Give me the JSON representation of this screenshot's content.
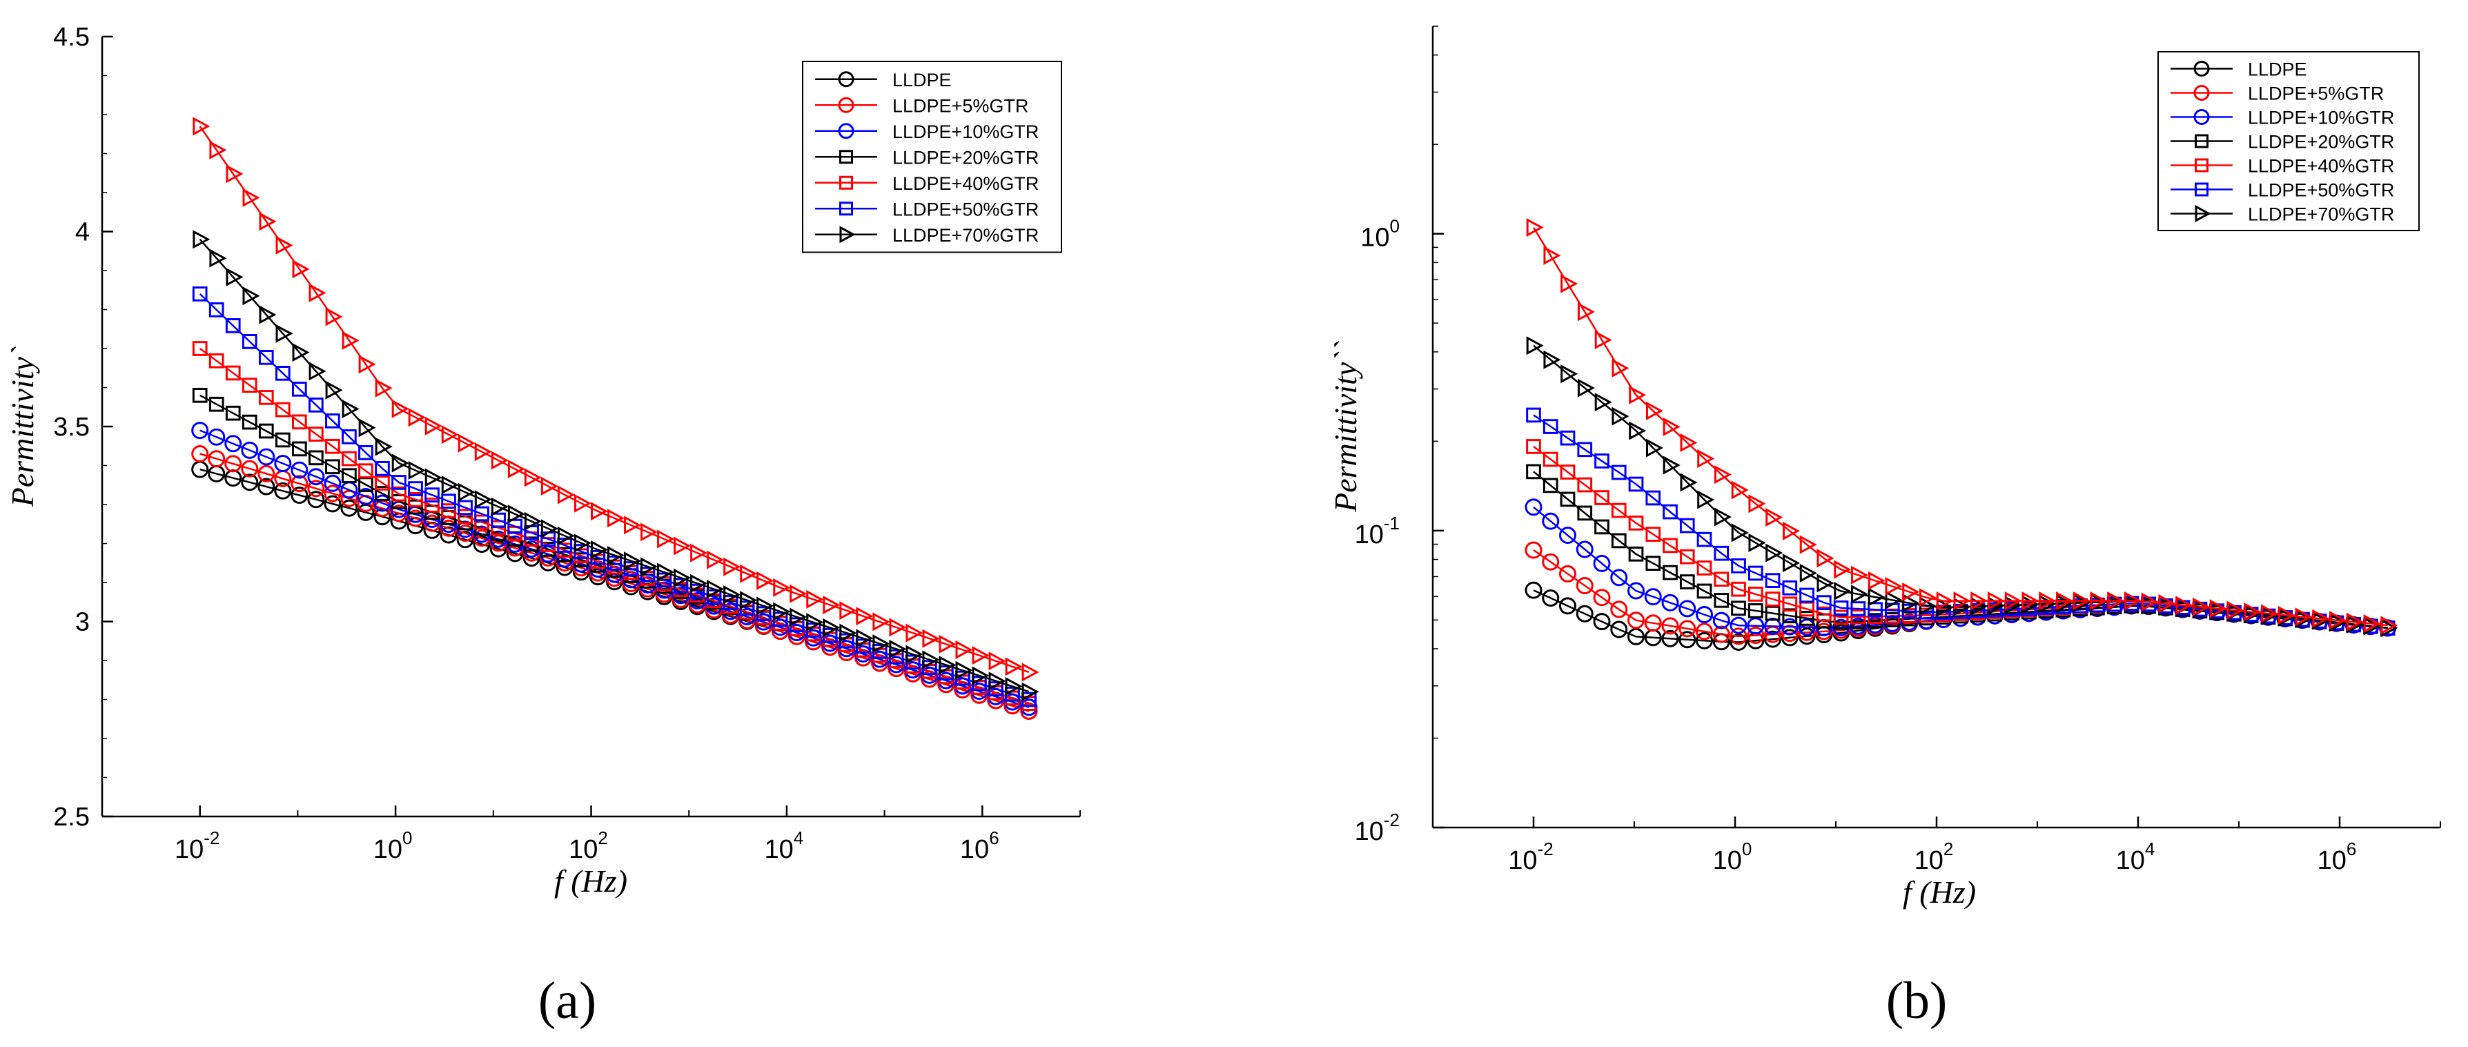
{
  "figures": [
    {
      "panel_label": "(a)",
      "xlabel": "f (Hz)",
      "ylabel": "Permittivity`",
      "legend_position": "top-right"
    },
    {
      "panel_label": "(b)",
      "xlabel": "f (Hz)",
      "ylabel": "Permittivity``",
      "legend_position": "top-right"
    }
  ],
  "chart_data": [
    {
      "type": "line",
      "title": "",
      "xlabel": "f (Hz)",
      "ylabel": "Permittivity`",
      "xscale": "log",
      "yscale": "linear",
      "xlim": [
        0.001,
        10000000
      ],
      "ylim": [
        2.5,
        4.5
      ],
      "xtick_exponents": [
        -2,
        0,
        2,
        4,
        6
      ],
      "yticks": [
        "2.5",
        "3",
        "3.5",
        "4",
        "4.5"
      ],
      "x_start": 0.01,
      "x_end": 3000000,
      "points_per_series": 51,
      "series": [
        {
          "name": "LLDPE",
          "color": "#000000",
          "marker": "circle",
          "knots": [
            [
              0.01,
              3.39
            ],
            [
              1,
              3.26
            ],
            [
              100,
              3.12
            ],
            [
              10000,
              2.97
            ],
            [
              3000000,
              2.77
            ]
          ]
        },
        {
          "name": "LLDPE+5%GTR",
          "color": "#ff0000",
          "marker": "circle",
          "knots": [
            [
              0.01,
              3.43
            ],
            [
              1,
              3.28
            ],
            [
              100,
              3.13
            ],
            [
              10000,
              2.97
            ],
            [
              3000000,
              2.77
            ]
          ]
        },
        {
          "name": "LLDPE+10%GTR",
          "color": "#0000ff",
          "marker": "circle",
          "knots": [
            [
              0.01,
              3.49
            ],
            [
              1,
              3.29
            ],
            [
              100,
              3.14
            ],
            [
              10000,
              2.98
            ],
            [
              3000000,
              2.78
            ]
          ]
        },
        {
          "name": "LLDPE+20%GTR",
          "color": "#000000",
          "marker": "square",
          "knots": [
            [
              0.01,
              3.58
            ],
            [
              1,
              3.31
            ],
            [
              100,
              3.15
            ],
            [
              10000,
              2.99
            ],
            [
              3000000,
              2.79
            ]
          ]
        },
        {
          "name": "LLDPE+40%GTR",
          "color": "#ff0000",
          "marker": "square",
          "knots": [
            [
              0.01,
              3.7
            ],
            [
              1,
              3.33
            ],
            [
              100,
              3.16
            ],
            [
              10000,
              2.99
            ],
            [
              3000000,
              2.79
            ]
          ]
        },
        {
          "name": "LLDPE+50%GTR",
          "color": "#0000ff",
          "marker": "square",
          "knots": [
            [
              0.01,
              3.84
            ],
            [
              1,
              3.36
            ],
            [
              100,
              3.17
            ],
            [
              10000,
              3.0
            ],
            [
              3000000,
              2.8
            ]
          ]
        },
        {
          "name": "LLDPE+70%GTR",
          "color": "#000000",
          "marker": "triangle-right",
          "knots": [
            [
              0.01,
              3.98
            ],
            [
              1,
              3.41
            ],
            [
              100,
              3.19
            ],
            [
              10000,
              3.02
            ],
            [
              3000000,
              2.82
            ]
          ]
        },
        {
          "name": "",
          "color": "#ff0000",
          "marker": "triangle-right",
          "knots": [
            [
              0.01,
              4.27
            ],
            [
              1,
              3.55
            ],
            [
              100,
              3.29
            ],
            [
              10000,
              3.08
            ],
            [
              3000000,
              2.87
            ]
          ]
        }
      ]
    },
    {
      "type": "line",
      "title": "",
      "xlabel": "f (Hz)",
      "ylabel": "Permittivity``",
      "xscale": "log",
      "yscale": "log",
      "xlim": [
        0.001,
        10000000
      ],
      "ylim": [
        0.01,
        5
      ],
      "xtick_exponents": [
        -2,
        0,
        2,
        4,
        6
      ],
      "ytick_exponents": [
        -2,
        -1,
        0
      ],
      "x_start": 0.01,
      "x_end": 3000000,
      "points_per_series": 51,
      "series": [
        {
          "name": "LLDPE",
          "color": "#000000",
          "marker": "circle",
          "knots": [
            [
              0.01,
              0.063
            ],
            [
              0.1,
              0.044
            ],
            [
              1,
              0.042
            ],
            [
              10,
              0.045
            ],
            [
              100,
              0.05
            ],
            [
              10000,
              0.056
            ],
            [
              3000000,
              0.047
            ]
          ]
        },
        {
          "name": "LLDPE+5%GTR",
          "color": "#ff0000",
          "marker": "circle",
          "knots": [
            [
              0.01,
              0.086
            ],
            [
              0.1,
              0.05
            ],
            [
              1,
              0.044
            ],
            [
              10,
              0.046
            ],
            [
              100,
              0.05
            ],
            [
              10000,
              0.056
            ],
            [
              3000000,
              0.047
            ]
          ]
        },
        {
          "name": "LLDPE+10%GTR",
          "color": "#0000ff",
          "marker": "circle",
          "knots": [
            [
              0.01,
              0.12
            ],
            [
              0.1,
              0.063
            ],
            [
              1,
              0.048
            ],
            [
              10,
              0.047
            ],
            [
              100,
              0.05
            ],
            [
              10000,
              0.056
            ],
            [
              3000000,
              0.047
            ]
          ]
        },
        {
          "name": "LLDPE+20%GTR",
          "color": "#000000",
          "marker": "square",
          "knots": [
            [
              0.01,
              0.158
            ],
            [
              0.1,
              0.084
            ],
            [
              1,
              0.055
            ],
            [
              10,
              0.049
            ],
            [
              100,
              0.051
            ],
            [
              10000,
              0.056
            ],
            [
              3000000,
              0.047
            ]
          ]
        },
        {
          "name": "LLDPE+40%GTR",
          "color": "#ff0000",
          "marker": "square",
          "knots": [
            [
              0.01,
              0.192
            ],
            [
              0.1,
              0.107
            ],
            [
              1,
              0.064
            ],
            [
              10,
              0.051
            ],
            [
              100,
              0.052
            ],
            [
              10000,
              0.057
            ],
            [
              3000000,
              0.047
            ]
          ]
        },
        {
          "name": "LLDPE+50%GTR",
          "color": "#0000ff",
          "marker": "square",
          "knots": [
            [
              0.01,
              0.245
            ],
            [
              0.1,
              0.145
            ],
            [
              1,
              0.077
            ],
            [
              10,
              0.055
            ],
            [
              100,
              0.053
            ],
            [
              10000,
              0.057
            ],
            [
              3000000,
              0.047
            ]
          ]
        },
        {
          "name": "LLDPE+70%GTR",
          "color": "#000000",
          "marker": "triangle-right",
          "knots": [
            [
              0.01,
              0.42
            ],
            [
              0.1,
              0.22
            ],
            [
              1,
              0.1
            ],
            [
              10,
              0.063
            ],
            [
              100,
              0.055
            ],
            [
              10000,
              0.058
            ],
            [
              3000000,
              0.047
            ]
          ]
        },
        {
          "name": "",
          "color": "#ff0000",
          "marker": "triangle-right",
          "knots": [
            [
              0.01,
              1.05
            ],
            [
              0.1,
              0.29
            ],
            [
              1,
              0.14
            ],
            [
              10,
              0.075
            ],
            [
              100,
              0.058
            ],
            [
              10000,
              0.058
            ],
            [
              3000000,
              0.048
            ]
          ]
        }
      ]
    }
  ]
}
